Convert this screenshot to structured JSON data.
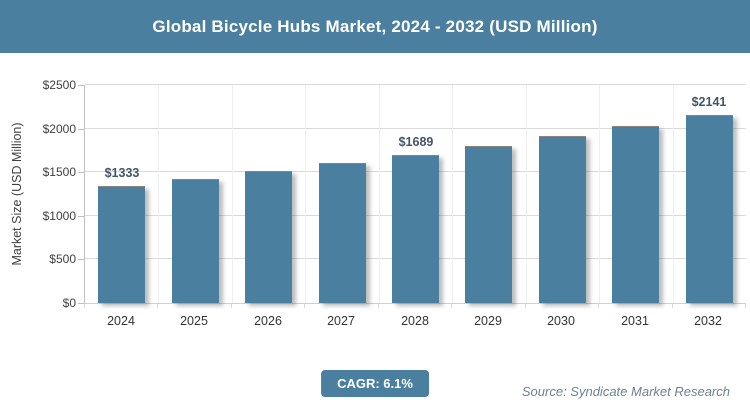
{
  "header": {
    "title": "Global Bicycle Hubs Market, 2024 - 2032 (USD Million)"
  },
  "chart_data": {
    "type": "bar",
    "title": "Global Bicycle Hubs Market, 2024 - 2032 (USD Million)",
    "categories": [
      "2024",
      "2025",
      "2026",
      "2027",
      "2028",
      "2029",
      "2030",
      "2031",
      "2032"
    ],
    "values": [
      1333,
      1414,
      1501,
      1592,
      1689,
      1792,
      1902,
      2018,
      2141
    ],
    "data_labels": [
      "$1333",
      "",
      "",
      "",
      "$1689",
      "",
      "",
      "",
      "$2141"
    ],
    "xlabel": "",
    "ylabel": "Market Size (USD Million)",
    "ylim": [
      0,
      2500
    ],
    "ytick_step": 500,
    "ytick_labels": [
      "$0",
      "$500",
      "$1000",
      "$1500",
      "$2000",
      "$2500"
    ],
    "grid": true,
    "legend": "none"
  },
  "footer": {
    "cagr_label": "CAGR: 6.1%",
    "source": "Source: Syndicate Market Research"
  },
  "colors": {
    "accent_teal": "#4A7FA0",
    "bar_fill": "#4A7FA0",
    "data_label": "#44546A",
    "axis_text": "#3f3f3f",
    "gridline": "#DADADA",
    "source_text": "#6E8290"
  }
}
